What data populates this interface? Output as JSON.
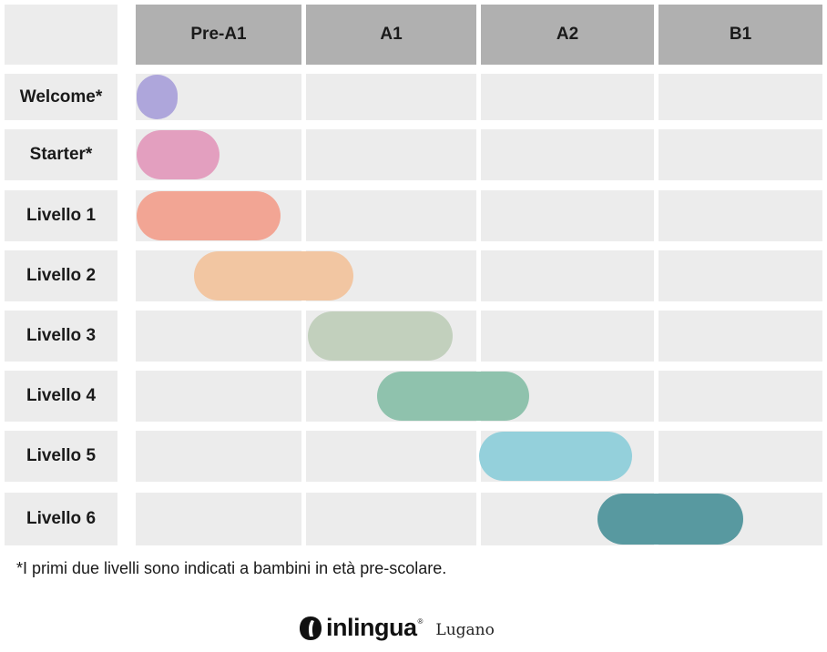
{
  "columns": [
    "Pre-A1",
    "A1",
    "A2",
    "B1"
  ],
  "rows": [
    {
      "label": "Welcome*",
      "color": "#aea6db"
    },
    {
      "label": "Starter*",
      "color": "#e39fbf"
    },
    {
      "label": "Livello 1",
      "color": "#f2a594"
    },
    {
      "label": "Livello 2",
      "color": "#f2c6a2"
    },
    {
      "label": "Livello 3",
      "color": "#c2d0bd"
    },
    {
      "label": "Livello 4",
      "color": "#8fc2ad"
    },
    {
      "label": "Livello 5",
      "color": "#94d0db"
    },
    {
      "label": "Livello 6",
      "color": "#5899a0"
    }
  ],
  "footnote": "*I primi due livelli sono indicati a bambini in età pre-scolare.",
  "brand": {
    "name": "inlingua",
    "registered": "®",
    "city": "Lugano"
  }
}
